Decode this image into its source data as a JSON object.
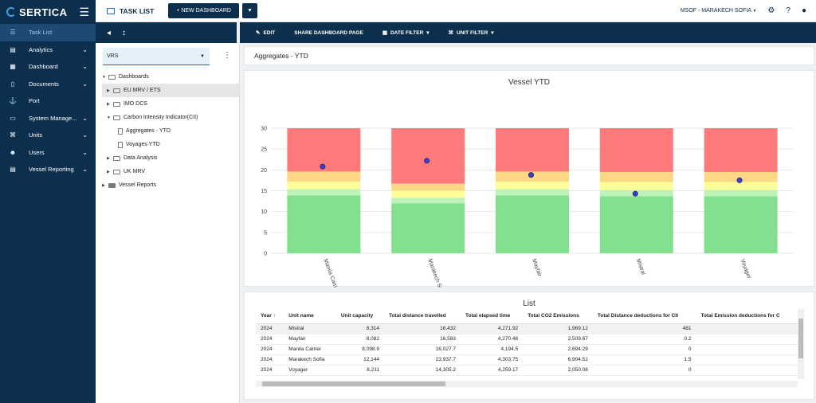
{
  "app": {
    "brand": "SERTICA",
    "menu_icon": "hamburger-icon"
  },
  "sidebar": {
    "items": [
      {
        "label": "Task List",
        "icon": "task-list-icon",
        "glyph": "☰",
        "expandable": false,
        "active": true
      },
      {
        "label": "Analytics",
        "icon": "analytics-icon",
        "glyph": "▤",
        "expandable": true
      },
      {
        "label": "Dashboard",
        "icon": "dashboard-icon",
        "glyph": "▦",
        "expandable": true
      },
      {
        "label": "Documents",
        "icon": "documents-icon",
        "glyph": "▯",
        "expandable": true
      },
      {
        "label": "Port",
        "icon": "port-icon",
        "glyph": "⚓",
        "expandable": false
      },
      {
        "label": "System Manage...",
        "icon": "system-icon",
        "glyph": "▭",
        "expandable": true
      },
      {
        "label": "Units",
        "icon": "units-icon",
        "glyph": "⌘",
        "expandable": true
      },
      {
        "label": "Users",
        "icon": "users-icon",
        "glyph": "☻",
        "expandable": true
      },
      {
        "label": "Vessel Reporting",
        "icon": "vessel-reporting-icon",
        "glyph": "▤",
        "expandable": true
      }
    ]
  },
  "topbar": {
    "title": "TASK LIST",
    "new_dashboard": "+ NEW DASHBOARD",
    "user": "MSOF - MARAKECH SOFIA"
  },
  "toolbar": {
    "edit": "EDIT",
    "share": "SHARE DASHBOARD PAGE",
    "date_filter": "DATE FILTER",
    "unit_filter": "UNIT FILTER"
  },
  "tree_panel": {
    "select_value": "VRS",
    "nodes": [
      {
        "label": "Dashboards",
        "level": 0,
        "expander": "▼",
        "icon": "dashboard"
      },
      {
        "label": "EU MRV / ETS",
        "level": 1,
        "expander": "▶",
        "icon": "dashboard",
        "selected": true
      },
      {
        "label": "IMO DCS",
        "level": 1,
        "expander": "▶",
        "icon": "dashboard"
      },
      {
        "label": "Carbon Intensity Indicator(CII)",
        "level": 1,
        "expander": "▼",
        "icon": "dashboard"
      },
      {
        "label": "Aggregates - YTD",
        "level": 2,
        "expander": "",
        "icon": "doc"
      },
      {
        "label": "Voyages YTD",
        "level": 2,
        "expander": "",
        "icon": "doc"
      },
      {
        "label": "Data Analysis",
        "level": 1,
        "expander": "▶",
        "icon": "dashboard"
      },
      {
        "label": "UK MRV",
        "level": 1,
        "expander": "▶",
        "icon": "dashboard"
      },
      {
        "label": "Vessel Reports",
        "level": 0,
        "expander": "▶",
        "icon": "folder"
      }
    ]
  },
  "main": {
    "breadcrumb": "Aggregates - YTD"
  },
  "chart_data": {
    "type": "bar",
    "title": "Vessel YTD",
    "categories": [
      "Manila Carrier",
      "Marakech Sofia",
      "Mayfair",
      "Mistral",
      "Voyager"
    ],
    "ylim": [
      0,
      30
    ],
    "yticks": [
      0,
      5,
      10,
      15,
      20,
      25,
      30
    ],
    "grid": true,
    "band_colors": [
      "#82e08e",
      "#bff2b8",
      "#fdfd9a",
      "#fcd786",
      "#ff7a7a"
    ],
    "band_tops": [
      [
        13.9,
        15.4,
        17.2,
        19.6,
        30
      ],
      [
        12.0,
        13.3,
        15.0,
        16.7,
        30
      ],
      [
        13.9,
        15.4,
        17.2,
        19.6,
        30
      ],
      [
        13.7,
        15.2,
        17.1,
        19.5,
        30
      ],
      [
        13.7,
        15.2,
        17.1,
        19.5,
        30
      ]
    ],
    "series": [
      {
        "values": [
          20.8,
          22.2,
          18.8,
          14.3,
          17.5
        ],
        "color": "#3b3bd6"
      }
    ]
  },
  "list": {
    "title": "List",
    "columns": [
      "Year ↑",
      "Unit name",
      "Unit capacity",
      "Total distance travelled",
      "Total elapsed time",
      "Total CO2 Emissions",
      "Total Distance deductions for CII",
      "Total Emission deductions for C"
    ],
    "rows": [
      [
        "2024",
        "Mistral",
        "8,314",
        "16,432",
        "4,271.92",
        "1,969.12",
        "481",
        ""
      ],
      [
        "2024",
        "Mayfair",
        "8,082",
        "16,583",
        "4,270.48",
        "2,509.67",
        "0.2",
        ""
      ],
      [
        "2024",
        "Manila Carrier",
        "8,098.9",
        "16,027.7",
        "4,194.5",
        "2,694.29",
        "0",
        ""
      ],
      [
        "2024",
        "Marakech Sofia",
        "12,144",
        "23,937.7",
        "4,303.75",
        "6,904.51",
        "1.5",
        ""
      ],
      [
        "2024",
        "Voyager",
        "8,211",
        "14,305.2",
        "4,259.17",
        "2,050.08",
        "0",
        ""
      ]
    ]
  }
}
